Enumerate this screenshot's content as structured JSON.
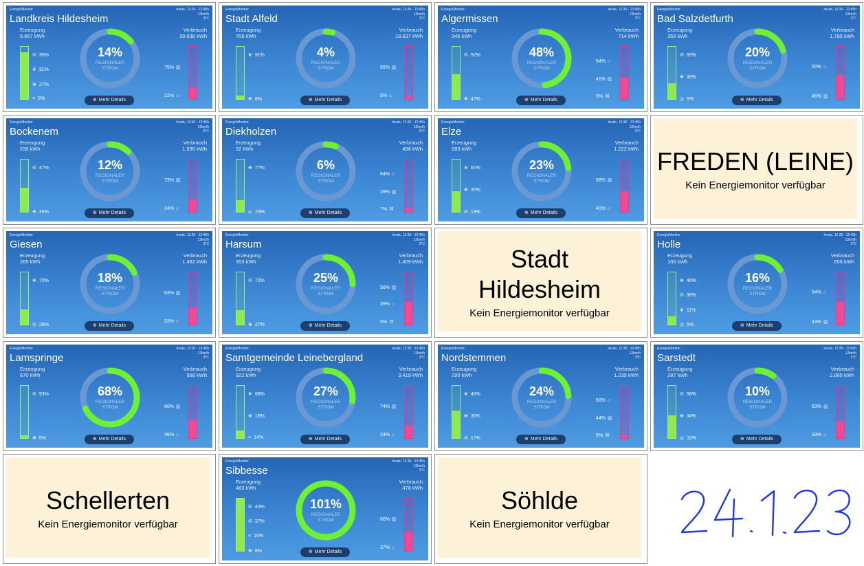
{
  "brand": "EnergieMonitor",
  "meta_time": "heute, 12:30 - 12:45h",
  "meta_wind": "12km/h",
  "meta_temp": "3°C",
  "label_gen": "Erzeugung",
  "label_use": "Verbrauch",
  "label_regional_1": "REGIONALER",
  "label_regional_2": "STROM",
  "details_label": "Mehr Details",
  "unavailable_text": "Kein Energiemonitor verfügbar",
  "colors": {
    "tile_top": "#2565b6",
    "ring_track": "#6a98d2",
    "ring_green": "#6cf233",
    "gen_fill": "#8fea4f",
    "con_fill": "#ef4a96",
    "na_bg": "#fdf1d7"
  },
  "tiles": [
    {
      "name": "Landkreis Hildesheim",
      "gen": "5.667 kWh",
      "use": "39.838 kWh",
      "pct": "14%",
      "ratio": 0.14,
      "gen_fill": 0.9,
      "con_fill": 0.22,
      "sources": [
        {
          "icon": "wind-icon",
          "val": "35%"
        },
        {
          "icon": "biomass-icon",
          "val": "31%"
        },
        {
          "icon": "solar-icon",
          "val": "27%"
        },
        {
          "icon": "other-icon",
          "val": "5%"
        }
      ],
      "uses": [
        {
          "icon": "industry-icon",
          "val": "75%"
        },
        {
          "icon": "home-icon",
          "val": "22%"
        }
      ]
    },
    {
      "name": "Stadt Alfeld",
      "gen": "706 kWh",
      "use": "18.637 kWh",
      "pct": "4%",
      "ratio": 0.04,
      "gen_fill": 0.06,
      "con_fill": 0.05,
      "sources": [
        {
          "icon": "biomass-icon",
          "val": "91%"
        },
        {
          "icon": "solar-icon",
          "val": "6%"
        }
      ],
      "uses": [
        {
          "icon": "industry-icon",
          "val": "95%"
        },
        {
          "icon": "home-icon",
          "val": "5%"
        }
      ]
    },
    {
      "name": "Algermissen",
      "gen": "345 kWh",
      "use": "714 kWh",
      "pct": "48%",
      "ratio": 0.48,
      "gen_fill": 0.47,
      "con_fill": 0.41,
      "sources": [
        {
          "icon": "wind-icon",
          "val": "52%"
        },
        {
          "icon": "solar-icon",
          "val": "47%"
        }
      ],
      "uses": [
        {
          "icon": "home-icon",
          "val": "54%"
        },
        {
          "icon": "industry-icon",
          "val": "41%"
        },
        {
          "icon": "farm-icon",
          "val": "5%"
        }
      ]
    },
    {
      "name": "Bad Salzdetfurth",
      "gen": "350 kWh",
      "use": "1.785 kWh",
      "pct": "20%",
      "ratio": 0.2,
      "gen_fill": 0.3,
      "con_fill": 0.46,
      "sources": [
        {
          "icon": "wind-icon",
          "val": "65%"
        },
        {
          "icon": "solar-icon",
          "val": "30%"
        },
        {
          "icon": "hydro-icon",
          "val": "5%"
        }
      ],
      "uses": [
        {
          "icon": "home-icon",
          "val": "50%"
        },
        {
          "icon": "industry-icon",
          "val": "46%"
        }
      ]
    },
    {
      "name": "Bockenem",
      "gen": "230 kWh",
      "use": "1.995 kWh",
      "pct": "12%",
      "ratio": 0.12,
      "gen_fill": 0.46,
      "con_fill": 0.24,
      "sources": [
        {
          "icon": "wind-icon",
          "val": "47%"
        },
        {
          "icon": "solar-icon",
          "val": "46%"
        }
      ],
      "uses": [
        {
          "icon": "industry-icon",
          "val": "73%"
        },
        {
          "icon": "home-icon",
          "val": "24%"
        }
      ]
    },
    {
      "name": "Diekholzen",
      "gen": "32 kWh",
      "use": "496 kWh",
      "pct": "6%",
      "ratio": 0.06,
      "gen_fill": 0.23,
      "con_fill": 0.07,
      "sources": [
        {
          "icon": "solar-icon",
          "val": "77%"
        },
        {
          "icon": "hydro-icon",
          "val": "23%"
        }
      ],
      "uses": [
        {
          "icon": "home-icon",
          "val": "64%"
        },
        {
          "icon": "industry-icon",
          "val": "29%"
        },
        {
          "icon": "farm-icon",
          "val": "7%"
        }
      ]
    },
    {
      "name": "Elze",
      "gen": "283 kWh",
      "use": "1.222 kWh",
      "pct": "23%",
      "ratio": 0.23,
      "gen_fill": 0.39,
      "con_fill": 0.4,
      "sources": [
        {
          "icon": "biomass-icon",
          "val": "61%"
        },
        {
          "icon": "solar-icon",
          "val": "20%"
        },
        {
          "icon": "wind-icon",
          "val": "19%"
        }
      ],
      "uses": [
        {
          "icon": "industry-icon",
          "val": "58%"
        },
        {
          "icon": "home-icon",
          "val": "40%"
        }
      ]
    },
    {
      "na": true,
      "name": "FREDEN (LEINE)"
    },
    {
      "name": "Giesen",
      "gen": "265 kWh",
      "use": "1.482 kWh",
      "pct": "18%",
      "ratio": 0.18,
      "gen_fill": 0.29,
      "con_fill": 0.33,
      "sources": [
        {
          "icon": "solar-icon",
          "val": "70%"
        },
        {
          "icon": "wind-icon",
          "val": "29%"
        }
      ],
      "uses": [
        {
          "icon": "industry-icon",
          "val": "63%"
        },
        {
          "icon": "home-icon",
          "val": "33%"
        }
      ]
    },
    {
      "name": "Harsum",
      "gen": "353 kWh",
      "use": "1.409 kWh",
      "pct": "25%",
      "ratio": 0.25,
      "gen_fill": 0.27,
      "con_fill": 0.44,
      "sources": [
        {
          "icon": "wind-icon",
          "val": "72%"
        },
        {
          "icon": "solar-icon",
          "val": "27%"
        }
      ],
      "uses": [
        {
          "icon": "industry-icon",
          "val": "56%"
        },
        {
          "icon": "home-icon",
          "val": "39%"
        },
        {
          "icon": "farm-icon",
          "val": "5%"
        }
      ]
    },
    {
      "na": true,
      "name": "Stadt Hildesheim"
    },
    {
      "name": "Holle",
      "gen": "106 kWh",
      "use": "656 kWh",
      "pct": "16%",
      "ratio": 0.16,
      "gen_fill": 0.16,
      "con_fill": 0.44,
      "sources": [
        {
          "icon": "solar-icon",
          "val": "46%"
        },
        {
          "icon": "wind-icon",
          "val": "38%"
        },
        {
          "icon": "biomass-icon",
          "val": "11%"
        },
        {
          "icon": "hydro-icon",
          "val": "5%"
        }
      ],
      "uses": [
        {
          "icon": "home-icon",
          "val": "54%"
        },
        {
          "icon": "industry-icon",
          "val": "44%"
        }
      ]
    },
    {
      "name": "Lamspringe",
      "gen": "670 kWh",
      "use": "988 kWh",
      "pct": "68%",
      "ratio": 0.68,
      "gen_fill": 0.05,
      "con_fill": 0.36,
      "sources": [
        {
          "icon": "wind-icon",
          "val": "93%"
        },
        {
          "icon": "solar-icon",
          "val": "5%"
        }
      ],
      "uses": [
        {
          "icon": "industry-icon",
          "val": "60%"
        },
        {
          "icon": "home-icon",
          "val": "36%"
        }
      ]
    },
    {
      "name": "Samtgemeinde Leinebergland",
      "gen": "922 kWh",
      "use": "3.419 kWh",
      "pct": "27%",
      "ratio": 0.27,
      "gen_fill": 0.14,
      "con_fill": 0.24,
      "sources": [
        {
          "icon": "biomass-icon",
          "val": "66%"
        },
        {
          "icon": "solar-icon",
          "val": "15%"
        },
        {
          "icon": "other-icon",
          "val": "14%"
        }
      ],
      "uses": [
        {
          "icon": "industry-icon",
          "val": "74%"
        },
        {
          "icon": "home-icon",
          "val": "24%"
        }
      ]
    },
    {
      "name": "Nordstemmen",
      "gen": "290 kWh",
      "use": "1.235 kWh",
      "pct": "24%",
      "ratio": 0.24,
      "gen_fill": 0.52,
      "con_fill": 0.06,
      "sources": [
        {
          "icon": "biomass-icon",
          "val": "46%"
        },
        {
          "icon": "solar-icon",
          "val": "35%"
        },
        {
          "icon": "wind-icon",
          "val": "17%"
        }
      ],
      "uses": [
        {
          "icon": "home-icon",
          "val": "50%"
        },
        {
          "icon": "industry-icon",
          "val": "44%"
        },
        {
          "icon": "farm-icon",
          "val": "6%"
        }
      ]
    },
    {
      "name": "Sarstedt",
      "gen": "287 kWh",
      "use": "2.885 kWh",
      "pct": "10%",
      "ratio": 0.1,
      "gen_fill": 0.44,
      "con_fill": 0.33,
      "sources": [
        {
          "icon": "wind-icon",
          "val": "56%"
        },
        {
          "icon": "solar-icon",
          "val": "34%"
        },
        {
          "icon": "hydro-icon",
          "val": "10%"
        }
      ],
      "uses": [
        {
          "icon": "industry-icon",
          "val": "63%"
        },
        {
          "icon": "home-icon",
          "val": "33%"
        }
      ]
    },
    {
      "na": true,
      "name": "Schellerten"
    },
    {
      "name": "Sibbesse",
      "gen": "483 kWh",
      "use": "478 kWh",
      "pct": "101%",
      "ratio": 1.0,
      "gen_fill": 1.0,
      "con_fill": 0.37,
      "sources": [
        {
          "icon": "wind-icon",
          "val": "40%"
        },
        {
          "icon": "wind-icon",
          "val": "37%"
        },
        {
          "icon": "other-icon",
          "val": "16%"
        },
        {
          "icon": "solar-icon",
          "val": "6%"
        }
      ],
      "uses": [
        {
          "icon": "industry-icon",
          "val": "60%"
        },
        {
          "icon": "home-icon",
          "val": "37%"
        }
      ]
    },
    {
      "na": true,
      "name": "Söhlde"
    }
  ],
  "handwritten_date": "24.1.23"
}
